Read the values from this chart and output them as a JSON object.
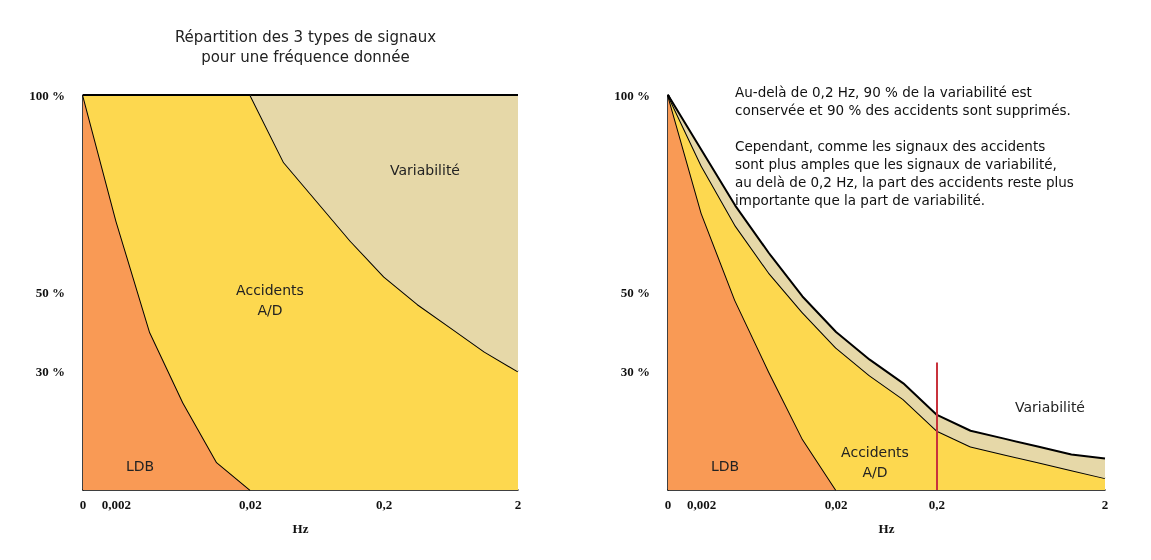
{
  "chart_data": [
    {
      "type": "area",
      "stacked": true,
      "title": "Répartition des 3 types de signaux\npour une fréquence donnée",
      "xlabel": "Hz",
      "categories": [
        "0",
        "0,002",
        null,
        null,
        null,
        "0,02",
        null,
        null,
        null,
        "0,2",
        null,
        null,
        null,
        "2"
      ],
      "series": [
        {
          "color": "#f99a55",
          "values": [
            100,
            68,
            40,
            22,
            7,
            0,
            null,
            null,
            null,
            null,
            null,
            null,
            null,
            null
          ]
        },
        {
          "color": "#fdd84f",
          "values": [
            0,
            32,
            60,
            78,
            93,
            100,
            83,
            73,
            63,
            54,
            47,
            41,
            35,
            30
          ]
        },
        {
          "color": "#e6d8a8",
          "values": [
            null,
            null,
            null,
            null,
            null,
            0,
            17,
            27,
            37,
            46,
            53,
            59,
            65,
            70
          ]
        }
      ],
      "ylim": [
        0,
        100
      ],
      "yticks": [
        {
          "value": 30,
          "label": "30 %"
        },
        {
          "value": 50,
          "label": "50 %"
        },
        {
          "value": 100,
          "label": "100 %"
        }
      ],
      "grid": false,
      "annotations": [
        "LDB",
        "Accidents\nA/D",
        "Variabilité"
      ]
    },
    {
      "type": "area",
      "stacked": true,
      "xlabel": "Hz",
      "categories": [
        "0",
        "0,002",
        null,
        null,
        null,
        "0,02",
        null,
        null,
        "0,2",
        null,
        null,
        null,
        null,
        "2"
      ],
      "series": [
        {
          "color": "#f99a55",
          "values": [
            100,
            70,
            48,
            30,
            13,
            0,
            null,
            null,
            null,
            null,
            null,
            null,
            null,
            null
          ]
        },
        {
          "color": "#fdd84f",
          "values": [
            0,
            12,
            19,
            25,
            32,
            36,
            29,
            23,
            15,
            11,
            9,
            7,
            5,
            3
          ]
        },
        {
          "color": "#e6d8a8",
          "values": [
            0,
            4,
            5,
            5,
            4,
            4,
            4,
            4,
            4,
            4,
            4,
            4,
            4,
            5
          ]
        }
      ],
      "ylim": [
        0,
        100
      ],
      "yticks": [
        {
          "value": 30,
          "label": "30 %"
        },
        {
          "value": 50,
          "label": "50 %"
        },
        {
          "value": 100,
          "label": "100 %"
        }
      ],
      "grid": false,
      "ref_lines": [
        {
          "axis": "x",
          "value": "0,2",
          "color": "#c8323c"
        }
      ],
      "annotations": [
        "Au-delà de 0,2 Hz, 90 % de la variabilité est\nconservée et 90 % des accidents sont supprimés.\n\nCependant, comme les signaux des accidents\nsont plus amples que les signaux de variabilité,\nau delà de 0,2 Hz, la part des accidents reste plus\nimportante que la part de variabilité.",
        "LDB",
        "Accidents\nA/D",
        "Variabilité"
      ]
    }
  ]
}
